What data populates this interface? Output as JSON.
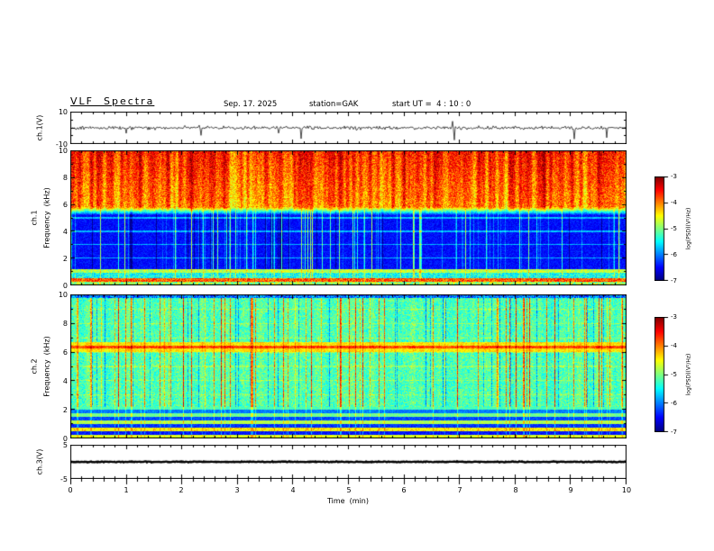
{
  "header": {
    "title": "VLF  Spectra",
    "date": "Sep. 17. 2025",
    "station": "station=GAK",
    "start_ut": "start UT =  4 : 10 : 0"
  },
  "xaxis": {
    "label": "Time  (min)",
    "ticks": [
      "0",
      "1",
      "2",
      "3",
      "4",
      "5",
      "6",
      "7",
      "8",
      "9",
      "10"
    ]
  },
  "ch1_wave": {
    "label": "ch.1(V)",
    "yticks": [
      "10",
      "-10"
    ],
    "ylim": [
      -10,
      10
    ]
  },
  "spec": {
    "ch1_label": "ch.1",
    "ch2_label": "ch.2",
    "freq_label": "Frequency  (kHz)",
    "yticks": [
      "10",
      "8",
      "6",
      "4",
      "2",
      "0"
    ],
    "ylim_khz": [
      0,
      10
    ]
  },
  "ch3_wave": {
    "label": "ch.3(V)",
    "yticks": [
      "5",
      "-5"
    ],
    "ylim": [
      -5,
      5
    ]
  },
  "colorbar": {
    "label": "log(PSD)(V²/Hz)",
    "ticks": [
      "-3",
      "-4",
      "-5",
      "-6",
      "-7"
    ],
    "range": [
      -7,
      -3
    ],
    "colormap": "jet"
  },
  "chart_data": [
    {
      "type": "line",
      "name": "ch1-waveform",
      "ylabel": "ch.1(V)",
      "xlim_min": [
        0,
        10
      ],
      "ylim": [
        -10,
        10
      ],
      "summary": "Broadband noisy voltage trace centred near 0 V, peak-to-peak about 3 V, with frequent impulsive negative spikes reaching -6 to -10 V across the full 10 minutes"
    },
    {
      "type": "heatmap",
      "name": "ch1-spectrogram",
      "ylabel": "Frequency (kHz)",
      "ylim_khz": [
        0,
        10
      ],
      "xlim_min": [
        0,
        10
      ],
      "colormap": "jet",
      "value_label": "log(PSD)(V²/Hz)",
      "value_range": [
        -7,
        -3
      ],
      "features": [
        "high power (log PSD ≈ -4 to -3, red/orange/yellow) from ~6 to 10 kHz with dense vertical striping",
        "very low power (≈ -6.5 to -7, dark blue) from ~1.5 to 5.5 kHz crossed by thin vertical sferic streaks",
        "thin enhanced horizontal lines near integer kHz values inside the low-power region",
        "strong yellow/orange band below ~0.5 kHz and a green band near 1 kHz"
      ]
    },
    {
      "type": "heatmap",
      "name": "ch2-spectrogram",
      "ylabel": "Frequency (kHz)",
      "ylim_khz": [
        0,
        10
      ],
      "xlim_min": [
        0,
        10
      ],
      "colormap": "jet",
      "value_label": "log(PSD)(V²/Hz)",
      "value_range": [
        -7,
        -3
      ],
      "features": [
        "moderate power cyan background (≈ -5.5) over 2-10 kHz with many vertical streaks and darker columns",
        "yellow-green enhanced band near 6-6.7 kHz with a thin orange line near 6.4 kHz",
        "alternating dark-blue / green horizontal bands below ~2 kHz",
        "yellow/green line near 0.4-0.6 kHz with sporadic orange bursts"
      ]
    },
    {
      "type": "line",
      "name": "ch3-waveform",
      "ylabel": "ch.3(V)",
      "xlim_min": [
        0,
        10
      ],
      "ylim": [
        -5,
        5
      ],
      "summary": "Essentially flat thick dark trace at ~0 V for the whole 10 minutes"
    }
  ]
}
